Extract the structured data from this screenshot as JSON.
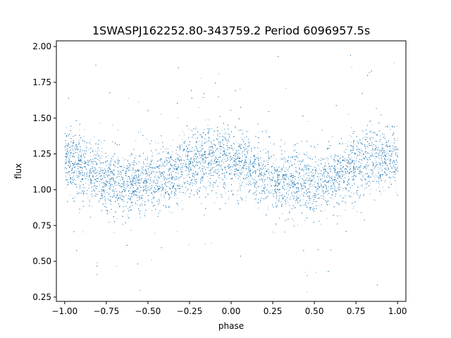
{
  "chart_data": {
    "type": "scatter",
    "title": "1SWASPJ162252.80-343759.2 Period 6096957.5s",
    "xlabel": "phase",
    "ylabel": "flux",
    "xlim": [
      -1.05,
      1.05
    ],
    "ylim": [
      0.22,
      2.04
    ],
    "x_ticks": [
      -1.0,
      -0.75,
      -0.5,
      -0.25,
      0.0,
      0.25,
      0.5,
      0.75,
      1.0
    ],
    "x_tick_labels": [
      "−1.00",
      "−0.75",
      "−0.50",
      "−0.25",
      "0.00",
      "0.25",
      "0.50",
      "0.75",
      "1.00"
    ],
    "y_ticks": [
      0.25,
      0.5,
      0.75,
      1.0,
      1.25,
      1.5,
      1.75,
      2.0
    ],
    "y_tick_labels": [
      "0.25",
      "0.50",
      "0.75",
      "1.00",
      "1.25",
      "1.50",
      "1.75",
      "2.00"
    ],
    "grid": false,
    "marker_color": "#1f77b4",
    "series": [
      {
        "trend": {
          "phase": [
            -1.0,
            -0.9,
            -0.8,
            -0.7,
            -0.6,
            -0.5,
            -0.4,
            -0.3,
            -0.2,
            -0.1,
            0.0,
            0.1,
            0.2,
            0.3,
            0.4,
            0.5,
            0.6,
            0.7,
            0.8,
            0.9,
            1.0
          ],
          "median_flux": [
            1.22,
            1.15,
            1.1,
            1.06,
            1.05,
            1.05,
            1.08,
            1.15,
            1.2,
            1.22,
            1.22,
            1.15,
            1.1,
            1.06,
            1.05,
            1.05,
            1.08,
            1.15,
            1.2,
            1.22,
            1.22
          ],
          "scatter_halfwidth": 0.15
        },
        "approx_point_count": 14000
      }
    ]
  }
}
